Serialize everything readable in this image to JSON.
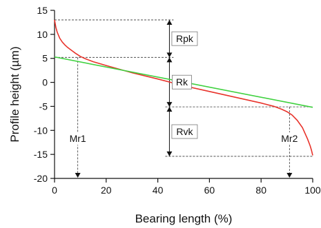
{
  "chart_data": {
    "type": "line",
    "xlabel": "Bearing length (%)",
    "ylabel": "Profile height (µm)",
    "xlim": [
      0,
      100
    ],
    "ylim": [
      -20,
      15
    ],
    "x_ticks": [
      0,
      20,
      40,
      60,
      80,
      100
    ],
    "y_ticks": [
      15,
      10,
      5,
      0,
      -5,
      -10,
      -15,
      -20
    ],
    "grid": false,
    "colors": {
      "curve": "#e8322a",
      "line": "#3fd13f",
      "axis": "#111111",
      "guide": "#333333"
    },
    "series": [
      {
        "role": "bearing-area-curve",
        "x": [
          0,
          0.5,
          1,
          2,
          3,
          4,
          5,
          6,
          7,
          8,
          10,
          12,
          15,
          20,
          30,
          40,
          50,
          60,
          70,
          80,
          85,
          88,
          90,
          92,
          94,
          96,
          97,
          98,
          99,
          99.5,
          100
        ],
        "y": [
          13,
          11.5,
          10.5,
          9.2,
          8.4,
          7.8,
          7.3,
          6.9,
          6.5,
          6.1,
          5.4,
          4.9,
          4.3,
          3.5,
          2.0,
          0.7,
          -0.7,
          -1.9,
          -3.1,
          -4.3,
          -5.0,
          -5.6,
          -6.1,
          -6.8,
          -7.9,
          -9.4,
          -10.6,
          -11.8,
          -13.2,
          -14.1,
          -15.2
        ]
      },
      {
        "role": "equivalent-straight-line",
        "x": [
          0,
          100
        ],
        "y": [
          5.3,
          -5.2
        ]
      }
    ],
    "levels": {
      "top": 13,
      "rk_upper": 5.2,
      "rk_lower": -5.1,
      "bottom": -15.4
    },
    "annotations": {
      "rpk": "Rpk",
      "rk": "Rk",
      "rvk": "Rvk",
      "mr1": "Mr1",
      "mr2": "Mr2"
    },
    "markers": {
      "mr1_x": 9,
      "mr2_x": 91,
      "dim_x": 44.5
    }
  }
}
